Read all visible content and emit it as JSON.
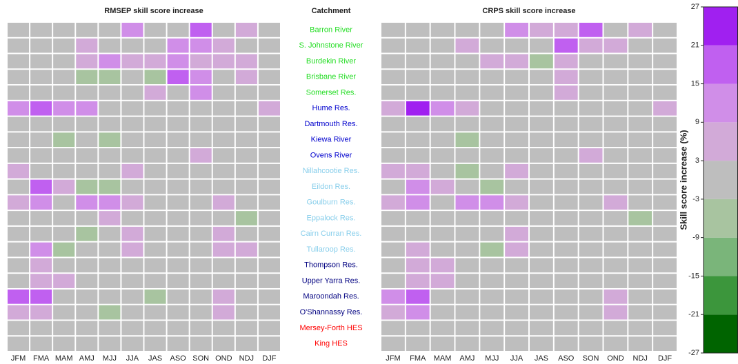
{
  "chart_data": [
    {
      "type": "heatmap",
      "title": "RMSEP skill score increase",
      "x": [
        "JFM",
        "FMA",
        "MAM",
        "AMJ",
        "MJJ",
        "JJA",
        "JAS",
        "ASO",
        "SON",
        "OND",
        "NDJ",
        "DJF"
      ],
      "values": [
        [
          0,
          0,
          0,
          0,
          0,
          12,
          0,
          0,
          18,
          0,
          6,
          0
        ],
        [
          0,
          0,
          0,
          6,
          0,
          0,
          0,
          12,
          12,
          6,
          0,
          0
        ],
        [
          0,
          0,
          0,
          6,
          12,
          6,
          6,
          12,
          6,
          6,
          6,
          0
        ],
        [
          0,
          0,
          0,
          -6,
          -6,
          0,
          -6,
          18,
          12,
          0,
          6,
          0
        ],
        [
          0,
          0,
          0,
          0,
          0,
          0,
          6,
          0,
          12,
          0,
          0,
          0
        ],
        [
          12,
          18,
          12,
          12,
          0,
          0,
          0,
          0,
          0,
          0,
          0,
          6
        ],
        [
          0,
          0,
          0,
          0,
          0,
          0,
          0,
          0,
          0,
          0,
          0,
          0
        ],
        [
          0,
          0,
          -6,
          0,
          -6,
          0,
          0,
          0,
          0,
          0,
          0,
          0
        ],
        [
          0,
          0,
          0,
          0,
          0,
          0,
          0,
          0,
          6,
          0,
          0,
          0
        ],
        [
          6,
          0,
          0,
          0,
          0,
          6,
          0,
          0,
          0,
          0,
          0,
          0
        ],
        [
          0,
          18,
          6,
          -6,
          -6,
          0,
          0,
          0,
          0,
          0,
          0,
          0
        ],
        [
          6,
          12,
          0,
          12,
          12,
          6,
          0,
          0,
          0,
          6,
          0,
          0
        ],
        [
          0,
          0,
          0,
          0,
          6,
          0,
          0,
          0,
          0,
          0,
          -6,
          0
        ],
        [
          0,
          0,
          0,
          -6,
          0,
          6,
          0,
          0,
          0,
          6,
          0,
          0
        ],
        [
          0,
          12,
          -6,
          0,
          0,
          6,
          0,
          0,
          0,
          6,
          6,
          0
        ],
        [
          0,
          6,
          0,
          0,
          0,
          0,
          0,
          0,
          0,
          0,
          0,
          0
        ],
        [
          0,
          6,
          6,
          0,
          0,
          0,
          0,
          0,
          0,
          0,
          0,
          0
        ],
        [
          18,
          18,
          0,
          0,
          0,
          0,
          -6,
          0,
          0,
          6,
          0,
          0
        ],
        [
          6,
          6,
          0,
          0,
          -6,
          0,
          0,
          0,
          0,
          6,
          0,
          0
        ],
        [
          0,
          0,
          0,
          0,
          0,
          0,
          0,
          0,
          0,
          0,
          0,
          0
        ],
        [
          0,
          0,
          0,
          0,
          0,
          0,
          0,
          0,
          0,
          0,
          0,
          0
        ]
      ]
    },
    {
      "type": "heatmap",
      "title": "CRPS skill score increase",
      "x": [
        "JFM",
        "FMA",
        "MAM",
        "AMJ",
        "MJJ",
        "JJA",
        "JAS",
        "ASO",
        "SON",
        "OND",
        "NDJ",
        "DJF"
      ],
      "values": [
        [
          0,
          0,
          0,
          0,
          0,
          12,
          6,
          6,
          18,
          0,
          6,
          0
        ],
        [
          0,
          0,
          0,
          6,
          0,
          0,
          0,
          18,
          6,
          6,
          0,
          0
        ],
        [
          0,
          0,
          0,
          0,
          6,
          6,
          -6,
          6,
          0,
          0,
          0,
          0
        ],
        [
          0,
          0,
          0,
          0,
          0,
          0,
          0,
          6,
          0,
          0,
          0,
          0
        ],
        [
          0,
          0,
          0,
          0,
          0,
          0,
          0,
          6,
          0,
          0,
          0,
          0
        ],
        [
          6,
          24,
          12,
          6,
          0,
          0,
          0,
          0,
          0,
          0,
          0,
          6
        ],
        [
          0,
          0,
          0,
          0,
          0,
          0,
          0,
          0,
          0,
          0,
          0,
          0
        ],
        [
          0,
          0,
          0,
          -6,
          0,
          0,
          0,
          0,
          0,
          0,
          0,
          0
        ],
        [
          0,
          0,
          0,
          0,
          0,
          0,
          0,
          0,
          6,
          0,
          0,
          0
        ],
        [
          6,
          6,
          0,
          -6,
          0,
          6,
          0,
          0,
          0,
          0,
          0,
          0
        ],
        [
          0,
          12,
          6,
          0,
          -6,
          0,
          0,
          0,
          0,
          0,
          0,
          0
        ],
        [
          6,
          12,
          0,
          12,
          12,
          6,
          0,
          0,
          0,
          6,
          0,
          0
        ],
        [
          0,
          0,
          0,
          0,
          0,
          0,
          0,
          0,
          0,
          0,
          -6,
          0
        ],
        [
          0,
          0,
          0,
          0,
          0,
          6,
          0,
          0,
          0,
          0,
          0,
          0
        ],
        [
          0,
          6,
          0,
          0,
          -6,
          6,
          0,
          0,
          0,
          0,
          0,
          0
        ],
        [
          0,
          6,
          6,
          0,
          0,
          0,
          0,
          0,
          0,
          0,
          0,
          0
        ],
        [
          0,
          6,
          6,
          0,
          0,
          0,
          0,
          0,
          0,
          0,
          0,
          0
        ],
        [
          12,
          18,
          0,
          0,
          0,
          0,
          0,
          0,
          0,
          6,
          0,
          0
        ],
        [
          6,
          12,
          0,
          0,
          0,
          0,
          0,
          0,
          0,
          6,
          0,
          0
        ],
        [
          0,
          0,
          0,
          0,
          0,
          0,
          0,
          0,
          0,
          0,
          0,
          0
        ],
        [
          0,
          0,
          0,
          0,
          0,
          0,
          0,
          0,
          0,
          0,
          0,
          0
        ]
      ]
    }
  ],
  "catchments": {
    "title": "Catchment",
    "names": [
      "Barron River",
      "S. Johnstone River",
      "Burdekin River",
      "Brisbane River",
      "Somerset Res.",
      "Hume Res.",
      "Dartmouth Res.",
      "Kiewa River",
      "Ovens River",
      "Nillahcootie Res.",
      "Eildon Res.",
      "Goulburn Res.",
      "Eppalock Res.",
      "Cairn Curran Res.",
      "Tullaroop Res.",
      "Thompson Res.",
      "Upper Yarra Res.",
      "Maroondah Res.",
      "O'Shannassy Res.",
      "Mersey-Forth HES",
      "King HES"
    ],
    "colors": [
      "#22dd22",
      "#22dd22",
      "#22dd22",
      "#22dd22",
      "#22dd22",
      "#0000cd",
      "#0000cd",
      "#0000cd",
      "#0000cd",
      "#87ceeb",
      "#87ceeb",
      "#87ceeb",
      "#87ceeb",
      "#87ceeb",
      "#87ceeb",
      "#000080",
      "#000080",
      "#000080",
      "#000080",
      "#ff0000",
      "#ff0000"
    ]
  },
  "colorbar": {
    "label": "Skill score increase (%)",
    "lim": [
      -27,
      27
    ],
    "ticks": [
      -27,
      -21,
      -15,
      -9,
      -3,
      3,
      9,
      15,
      21,
      27
    ],
    "colors": [
      "#006400",
      "#3c963c",
      "#7ab57a",
      "#a8c4a0",
      "#bebebe",
      "#d2aad8",
      "#d08ee8",
      "#c060f0",
      "#a020f0"
    ]
  }
}
